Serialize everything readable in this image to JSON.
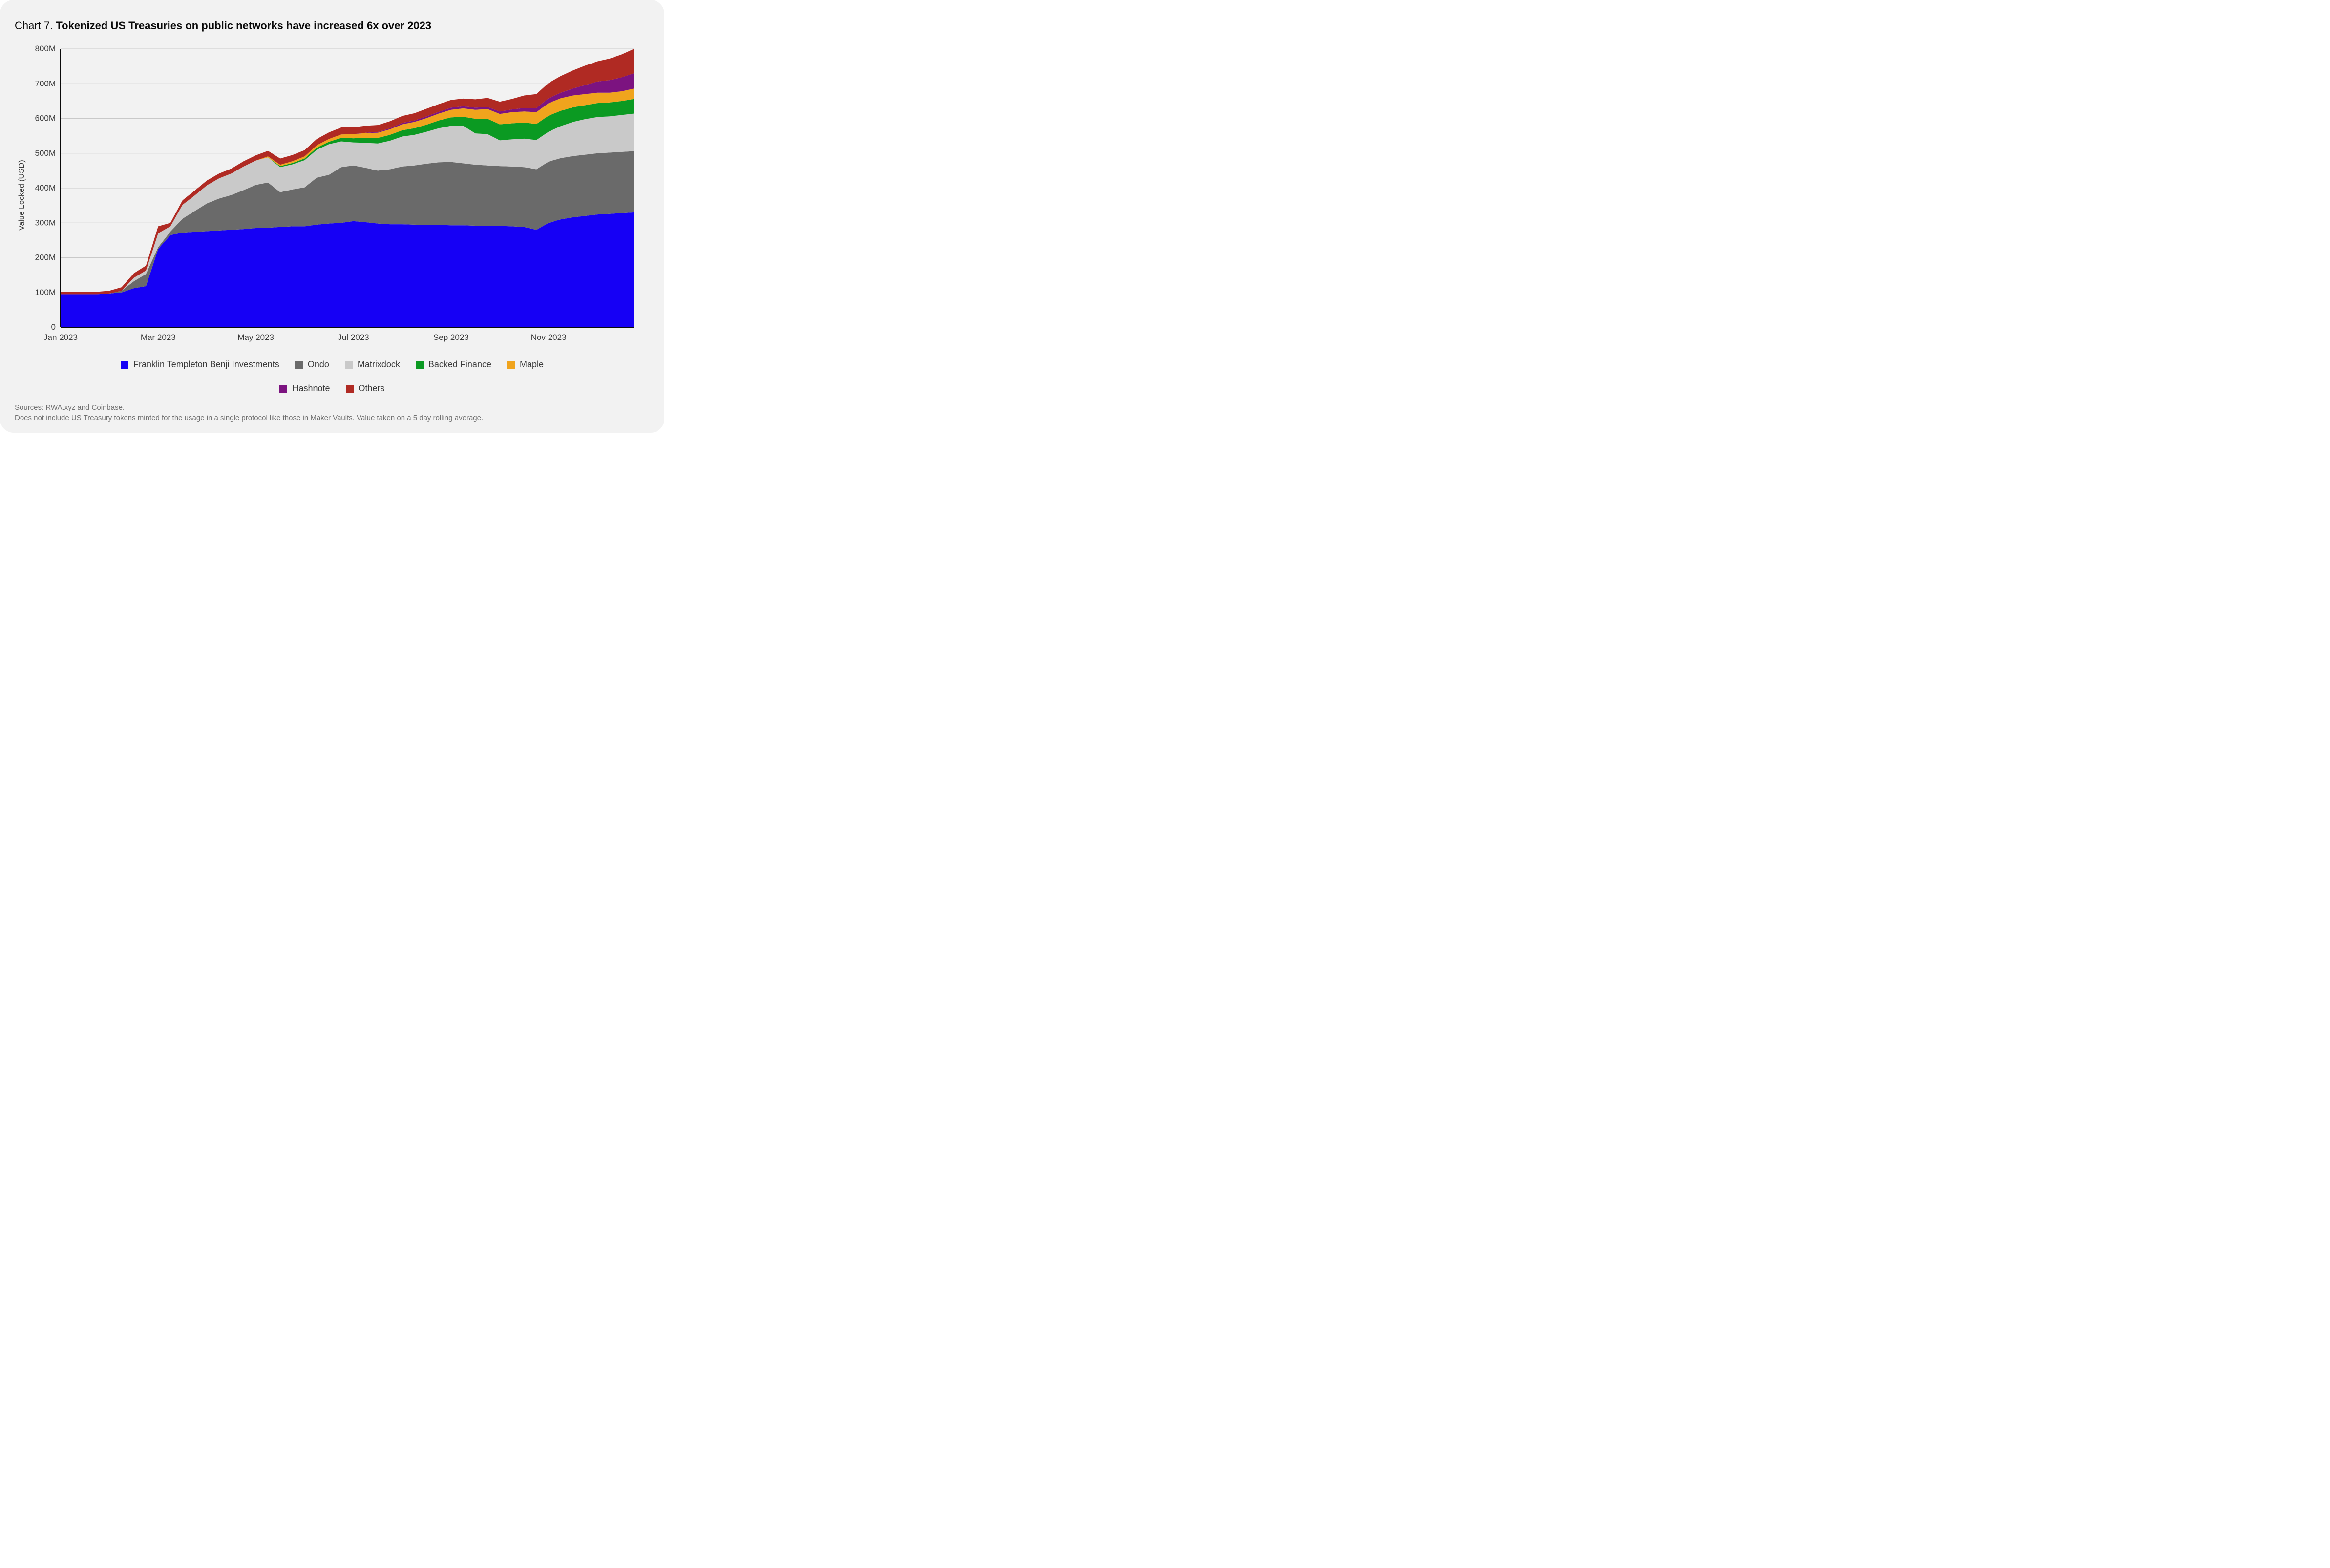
{
  "title_prefix": "Chart 7. ",
  "title_bold": "Tokenized US Treasuries on public networks have increased 6x over 2023",
  "ylabel": "Value Locked (USD)",
  "sources_line1": "Sources: RWA.xyz and Coinbase.",
  "sources_line2": "Does not include US Treasury tokens minted for the usage in a single protocol like those in Maker Vaults. Value taken on a 5 day rolling average.",
  "chart": {
    "type": "stacked-area",
    "background_color": "#f2f2f2",
    "axis_color": "#0a0a0a",
    "grid_color": "#c9c9c9",
    "tick_label_color": "#3b3b3b",
    "tick_fontsize": 17,
    "label_fontsize": 16,
    "ylim": [
      0,
      800
    ],
    "yticks": [
      0,
      100,
      200,
      300,
      400,
      500,
      600,
      700,
      800
    ],
    "ytick_labels": [
      "0",
      "100M",
      "200M",
      "300M",
      "400M",
      "500M",
      "600M",
      "700M",
      "800M"
    ],
    "x_count": 48,
    "xticks_idx": [
      0,
      8,
      16,
      24,
      32,
      40
    ],
    "xtick_labels": [
      "Jan 2023",
      "Mar 2023",
      "May 2023",
      "Jul 2023",
      "Sep 2023",
      "Nov 2023"
    ],
    "series": [
      {
        "name": "Franklin Templeton Benji Investments",
        "color": "#1600f5",
        "values": [
          95,
          95,
          95,
          95,
          97,
          100,
          112,
          118,
          225,
          265,
          272,
          274,
          276,
          278,
          280,
          282,
          285,
          286,
          288,
          290,
          290,
          295,
          298,
          300,
          305,
          302,
          298,
          296,
          296,
          295,
          294,
          294,
          293,
          293,
          292,
          292,
          291,
          290,
          288,
          280,
          300,
          310,
          316,
          320,
          324,
          326,
          328,
          330
        ]
      },
      {
        "name": "Ondo",
        "color": "#6a6a6a",
        "values": [
          0,
          0,
          0,
          0,
          0,
          5,
          20,
          35,
          5,
          10,
          40,
          60,
          80,
          92,
          100,
          112,
          124,
          130,
          100,
          106,
          112,
          135,
          140,
          160,
          160,
          156,
          152,
          158,
          166,
          170,
          176,
          180,
          182,
          178,
          175,
          173,
          172,
          172,
          172,
          174,
          176,
          176,
          176,
          176,
          176,
          176,
          176,
          176
        ]
      },
      {
        "name": "Matrixdock",
        "color": "#c9c9c9",
        "values": [
          0,
          0,
          0,
          0,
          0,
          0,
          10,
          10,
          40,
          15,
          40,
          45,
          52,
          58,
          62,
          68,
          70,
          72,
          72,
          72,
          78,
          80,
          88,
          74,
          66,
          72,
          78,
          82,
          86,
          88,
          92,
          98,
          104,
          108,
          90,
          90,
          74,
          78,
          82,
          84,
          86,
          92,
          98,
          102,
          104,
          104,
          106,
          108
        ]
      },
      {
        "name": "Backed Finance",
        "color": "#0b9a22",
        "values": [
          0,
          0,
          0,
          0,
          0,
          0,
          0,
          0,
          0,
          0,
          0,
          0,
          0,
          0,
          0,
          0,
          0,
          0,
          3,
          4,
          5,
          6,
          7,
          10,
          12,
          14,
          16,
          17,
          18,
          19,
          20,
          22,
          24,
          26,
          42,
          44,
          46,
          46,
          46,
          46,
          46,
          44,
          42,
          40,
          40,
          40,
          40,
          42
        ]
      },
      {
        "name": "Maple",
        "color": "#f0a41d",
        "values": [
          0,
          0,
          0,
          0,
          0,
          0,
          0,
          0,
          0,
          0,
          0,
          0,
          0,
          0,
          0,
          0,
          0,
          3,
          4,
          5,
          6,
          7,
          8,
          10,
          12,
          14,
          15,
          16,
          17,
          18,
          19,
          20,
          22,
          24,
          26,
          28,
          30,
          32,
          32,
          34,
          36,
          36,
          34,
          32,
          30,
          28,
          28,
          30
        ]
      },
      {
        "name": "Hashnote",
        "color": "#7c1380",
        "values": [
          0,
          0,
          0,
          0,
          0,
          0,
          0,
          0,
          0,
          0,
          0,
          0,
          0,
          0,
          0,
          0,
          0,
          0,
          0,
          0,
          0,
          0,
          0,
          0,
          0,
          1,
          2,
          3,
          4,
          4,
          5,
          5,
          6,
          6,
          6,
          6,
          7,
          8,
          10,
          12,
          14,
          16,
          20,
          26,
          32,
          36,
          40,
          44
        ]
      },
      {
        "name": "Others",
        "color": "#b02a23",
        "values": [
          7,
          7,
          7,
          7,
          8,
          10,
          13,
          14,
          20,
          10,
          13,
          14,
          14,
          14,
          14,
          15,
          15,
          16,
          18,
          18,
          18,
          18,
          19,
          20,
          20,
          20,
          20,
          20,
          20,
          21,
          22,
          22,
          22,
          22,
          24,
          26,
          28,
          30,
          36,
          40,
          44,
          48,
          52,
          56,
          58,
          62,
          66,
          70
        ]
      }
    ]
  }
}
